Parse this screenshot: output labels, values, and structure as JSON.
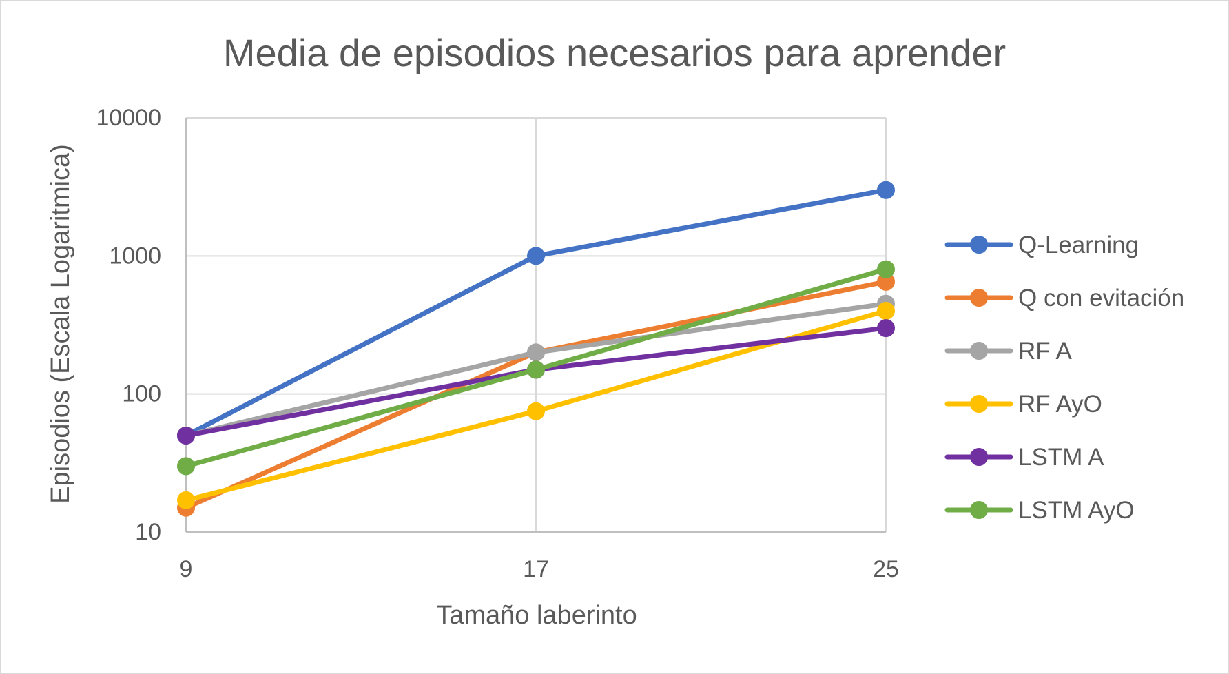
{
  "chart_data": {
    "type": "line",
    "title": "Media de episodios necesarios para aprender",
    "xlabel": "Tamaño laberinto",
    "ylabel": "Episodios (Escala Logaritmica)",
    "x": [
      9,
      17,
      25
    ],
    "x_tick_labels": [
      "9",
      "17",
      "25"
    ],
    "y_scale": "log",
    "ylim": [
      10,
      10000
    ],
    "y_tick_labels": [
      "10",
      "100",
      "1000",
      "10000"
    ],
    "grid": true,
    "legend_position": "right",
    "series": [
      {
        "name": "Q-Learning",
        "color": "#4472C4",
        "values": [
          50,
          1000,
          3000
        ]
      },
      {
        "name": "Q con evitación",
        "color": "#ED7D31",
        "values": [
          15,
          200,
          650
        ]
      },
      {
        "name": "RF A",
        "color": "#A5A5A5",
        "values": [
          50,
          200,
          450
        ]
      },
      {
        "name": "RF AyO",
        "color": "#FFC000",
        "values": [
          17,
          75,
          400
        ]
      },
      {
        "name": "LSTM A",
        "color": "#7030A0",
        "values": [
          50,
          150,
          300
        ]
      },
      {
        "name": "LSTM AyO",
        "color": "#70AD47",
        "values": [
          30,
          150,
          800
        ]
      }
    ]
  }
}
